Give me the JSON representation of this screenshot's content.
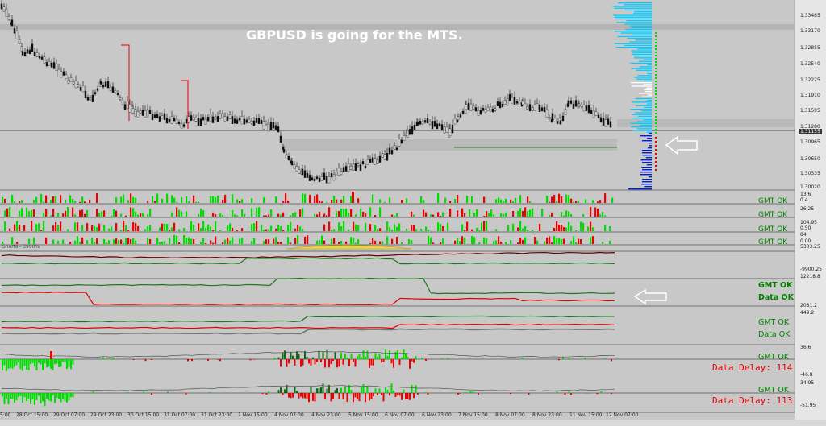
{
  "chart": {
    "title": "GBPUSD is going for the MTS.",
    "price_axis": [
      "1.33485",
      "1.33170",
      "1.32855",
      "1.32540",
      "1.32225",
      "1.31910",
      "1.31595",
      "1.31280",
      "1.31155",
      "1.30965",
      "1.30650",
      "1.30335",
      "1.30020"
    ],
    "current_price": "1.31155",
    "time_axis": [
      "5:00",
      "28 Oct 15:00",
      "29 Oct 07:00",
      "29 Oct 23:00",
      "30 Oct 15:00",
      "31 Oct 07:00",
      "31 Oct 23:00",
      "1 Nov 15:00",
      "4 Nov 07:00",
      "4 Nov 23:00",
      "5 Nov 15:00",
      "6 Nov 07:00",
      "6 Nov 23:00",
      "7 Nov 15:00",
      "8 Nov 07:00",
      "8 Nov 23:00",
      "11 Nov 15:00",
      "12 Nov 07:00"
    ],
    "colors": {
      "background": "#c8c8c8",
      "bull": "#00dd00",
      "bear": "#ee0000",
      "profile": "#00ccff"
    }
  },
  "indicators": {
    "panel_scales": [
      "13.6",
      "0.4",
      "26.25",
      "104.95",
      "0.50",
      "84",
      "0.00",
      "5303.25",
      "-9900.25",
      "12218.8",
      "2081.2",
      "449.2",
      "36.6",
      "-46.8",
      "34.95",
      "-51.95"
    ],
    "panel_header": "Shorts - 3900%",
    "gmt_ok_label": "GMT OK",
    "data_ok_label": "Data OK",
    "data_delay_1": "Data Delay: 114",
    "data_delay_2": "Data Delay: 113"
  }
}
